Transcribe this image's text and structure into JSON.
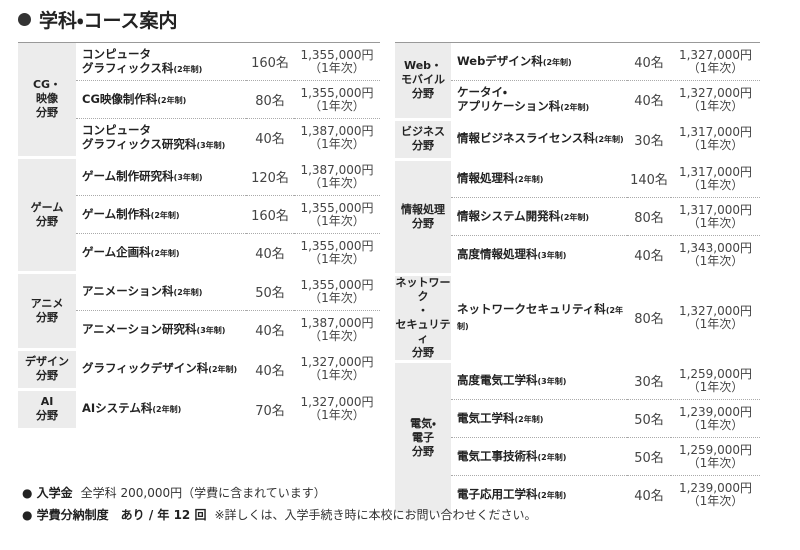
{
  "title": "学科・コース案内",
  "left": {
    "groups": [
      {
        "field": [
          "CG・",
          "映像",
          "分野"
        ],
        "courses": [
          {
            "name": [
              "コンピュータ",
              "グラフィックス科"
            ],
            "duration": "(2年制)",
            "capacity": "160名",
            "fee": "1,355,000円",
            "fee_note": "（1年次）"
          },
          {
            "name": [
              "CG映像制作科"
            ],
            "duration": "(2年制)",
            "capacity": "80名",
            "fee": "1,355,000円",
            "fee_note": "（1年次）"
          },
          {
            "name": [
              "コンピュータ",
              "グラフィックス研究科"
            ],
            "duration": "(3年制)",
            "capacity": "40名",
            "fee": "1,387,000円",
            "fee_note": "（1年次）"
          }
        ]
      },
      {
        "field": [
          "ゲーム",
          "分野"
        ],
        "courses": [
          {
            "name": [
              "ゲーム制作研究科"
            ],
            "duration": "(3年制)",
            "capacity": "120名",
            "fee": "1,387,000円",
            "fee_note": "（1年次）"
          },
          {
            "name": [
              "ゲーム制作科"
            ],
            "duration": "(2年制)",
            "capacity": "160名",
            "fee": "1,355,000円",
            "fee_note": "（1年次）"
          },
          {
            "name": [
              "ゲーム企画科"
            ],
            "duration": "(2年制)",
            "capacity": "40名",
            "fee": "1,355,000円",
            "fee_note": "（1年次）"
          }
        ]
      },
      {
        "field": [
          "アニメ",
          "分野"
        ],
        "courses": [
          {
            "name": [
              "アニメーション科"
            ],
            "duration": "(2年制)",
            "capacity": "50名",
            "fee": "1,355,000円",
            "fee_note": "（1年次）"
          },
          {
            "name": [
              "アニメーション研究科"
            ],
            "duration": "(3年制)",
            "capacity": "40名",
            "fee": "1,387,000円",
            "fee_note": "（1年次）"
          }
        ]
      },
      {
        "field": [
          "デザイン",
          "分野"
        ],
        "courses": [
          {
            "name": [
              "グラフィックデザイン科"
            ],
            "duration": "(2年制)",
            "capacity": "40名",
            "fee": "1,327,000円",
            "fee_note": "（1年次）"
          }
        ]
      },
      {
        "field": [
          "AI",
          "分野"
        ],
        "courses": [
          {
            "name": [
              "AIシステム科"
            ],
            "duration": "(2年制)",
            "capacity": "70名",
            "fee": "1,327,000円",
            "fee_note": "（1年次）"
          }
        ]
      }
    ]
  },
  "right": {
    "groups": [
      {
        "field": [
          "Web・",
          "モバイル",
          "分野"
        ],
        "courses": [
          {
            "name": [
              "Webデザイン科"
            ],
            "duration": "(2年制)",
            "capacity": "40名",
            "fee": "1,327,000円",
            "fee_note": "（1年次）"
          },
          {
            "name": [
              "ケータイ・",
              "アプリケーション科"
            ],
            "duration": "(2年制)",
            "capacity": "40名",
            "fee": "1,327,000円",
            "fee_note": "（1年次）"
          }
        ]
      },
      {
        "field": [
          "ビジネス",
          "分野"
        ],
        "courses": [
          {
            "name": [
              "情報ビジネスライセンス科"
            ],
            "duration": "(2年制)",
            "capacity": "30名",
            "fee": "1,317,000円",
            "fee_note": "（1年次）"
          }
        ]
      },
      {
        "field": [
          "情報処理",
          "分野"
        ],
        "courses": [
          {
            "name": [
              "情報処理科"
            ],
            "duration": "(2年制)",
            "capacity": "140名",
            "fee": "1,317,000円",
            "fee_note": "（1年次）"
          },
          {
            "name": [
              "情報システム開発科"
            ],
            "duration": "(2年制)",
            "capacity": "80名",
            "fee": "1,317,000円",
            "fee_note": "（1年次）"
          },
          {
            "name": [
              "高度情報処理科"
            ],
            "duration": "(3年制)",
            "capacity": "40名",
            "fee": "1,343,000円",
            "fee_note": "（1年次）"
          }
        ]
      },
      {
        "field": [
          "ネットワーク",
          "・",
          "セキュリティ",
          "分野"
        ],
        "courses": [
          {
            "name": [
              "ネットワークセキュリティ科"
            ],
            "duration": "(2年制)",
            "capacity": "80名",
            "fee": "1,327,000円",
            "fee_note": "（1年次）"
          }
        ]
      },
      {
        "field": [
          "電気・",
          "電子",
          "分野"
        ],
        "courses": [
          {
            "name": [
              "高度電気工学科"
            ],
            "duration": "(3年制)",
            "capacity": "30名",
            "fee": "1,259,000円",
            "fee_note": "（1年次）"
          },
          {
            "name": [
              "電気工学科"
            ],
            "duration": "(2年制)",
            "capacity": "50名",
            "fee": "1,239,000円",
            "fee_note": "（1年次）"
          },
          {
            "name": [
              "電気工事技術科"
            ],
            "duration": "(2年制)",
            "capacity": "50名",
            "fee": "1,259,000円",
            "fee_note": "（1年次）"
          },
          {
            "name": [
              "電子応用工学科"
            ],
            "duration": "(2年制)",
            "capacity": "40名",
            "fee": "1,239,000円",
            "fee_note": "（1年次）"
          }
        ]
      }
    ]
  },
  "notes": [
    {
      "label": "入学金",
      "text": "全学科 200,000円（学費に含まれています）"
    },
    {
      "label": "学費分納制度　あり / 年 12 回",
      "text": "※詳しくは、入学手続き時に本校にお問い合わせください。"
    }
  ]
}
